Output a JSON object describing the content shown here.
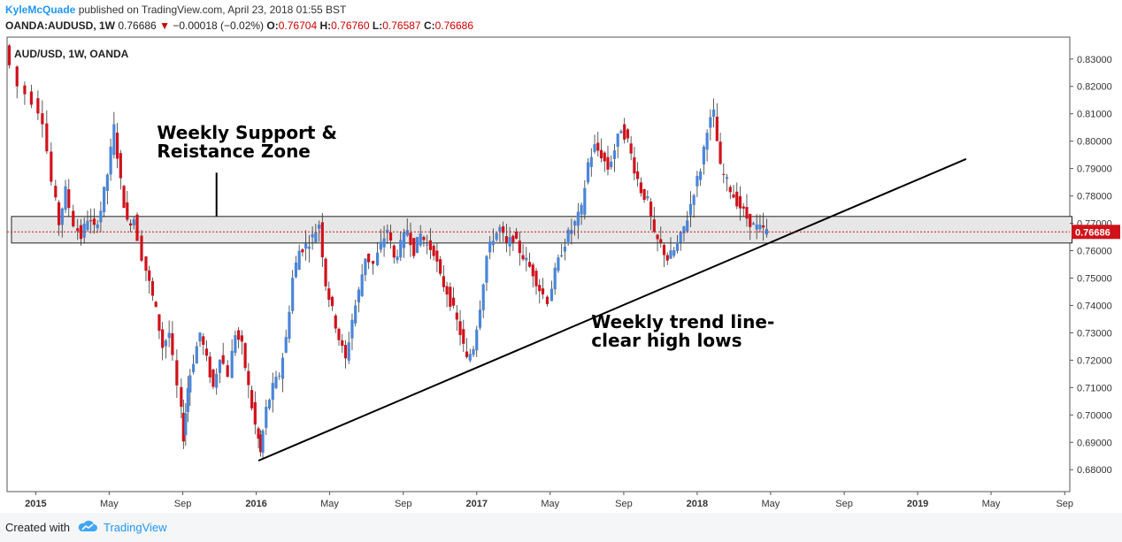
{
  "header": {
    "author": "KyleMcQuade",
    "published_text": "published on TradingView.com, April 23, 2018 01:55 BST",
    "symbol": "OANDA:AUDUSD, 1W",
    "last": "0.76686",
    "change_arrow": "▼",
    "change": "−0.00018 (−0.02%)",
    "open_label": "O:",
    "open": "0.76704",
    "high_label": "H:",
    "high": "0.76760",
    "low_label": "L:",
    "low": "0.76587",
    "close_label": "C:",
    "close": "0.76686"
  },
  "footer": {
    "created_with": "Created with",
    "brand": "TradingView"
  },
  "chart_data": {
    "type": "candlestick",
    "title": "AUD/USD, 1W, OANDA",
    "y_axis": {
      "min": 0.672,
      "max": 0.838,
      "ticks": [
        "0.83000",
        "0.82000",
        "0.81000",
        "0.80000",
        "0.79000",
        "0.78000",
        "0.77000",
        "0.76000",
        "0.75000",
        "0.74000",
        "0.73000",
        "0.72000",
        "0.71000",
        "0.70000",
        "0.69000",
        "0.68000"
      ],
      "tick_values": [
        0.83,
        0.82,
        0.81,
        0.8,
        0.79,
        0.78,
        0.77,
        0.76,
        0.75,
        0.74,
        0.73,
        0.72,
        0.71,
        0.7,
        0.69,
        0.68
      ]
    },
    "x_axis": {
      "ticks": [
        {
          "label": "2015",
          "bold": true,
          "t": 2015.0
        },
        {
          "label": "May",
          "bold": false,
          "t": 2015.333
        },
        {
          "label": "Sep",
          "bold": false,
          "t": 2015.667
        },
        {
          "label": "2016",
          "bold": true,
          "t": 2016.0
        },
        {
          "label": "May",
          "bold": false,
          "t": 2016.333
        },
        {
          "label": "Sep",
          "bold": false,
          "t": 2016.667
        },
        {
          "label": "2017",
          "bold": true,
          "t": 2017.0
        },
        {
          "label": "May",
          "bold": false,
          "t": 2017.333
        },
        {
          "label": "Sep",
          "bold": false,
          "t": 2017.667
        },
        {
          "label": "2018",
          "bold": true,
          "t": 2018.0
        },
        {
          "label": "May",
          "bold": false,
          "t": 2018.333
        },
        {
          "label": "Sep",
          "bold": false,
          "t": 2018.667
        },
        {
          "label": "2019",
          "bold": true,
          "t": 2019.0
        },
        {
          "label": "May",
          "bold": false,
          "t": 2019.333
        },
        {
          "label": "Sep",
          "bold": false,
          "t": 2019.667
        }
      ]
    },
    "current_price": 0.76686,
    "current_price_label": "0.76686",
    "support_resistance_zone": {
      "top": 0.7725,
      "bottom": 0.7628,
      "t_start": 2014.89,
      "t_end": 2019.7
    },
    "trend_line": {
      "t1": 2016.01,
      "p1": 0.6833,
      "t2": 2019.22,
      "p2": 0.7935
    },
    "annotations": [
      {
        "id": "zone",
        "lines": [
          "Weekly Support &",
          "Reistance Zone"
        ],
        "t": 2015.55,
        "p": 0.8008,
        "pointer_t": 2015.82,
        "pointer_from": 0.7885,
        "pointer_to": 0.7725
      },
      {
        "id": "trend",
        "lines": [
          "Weekly trend line-",
          "clear high lows"
        ],
        "t": 2017.52,
        "p": 0.7318
      }
    ],
    "path_points": [
      [
        2014.88,
        0.835
      ],
      [
        2014.95,
        0.82
      ],
      [
        2015.01,
        0.815
      ],
      [
        2015.05,
        0.808
      ],
      [
        2015.09,
        0.785
      ],
      [
        2015.12,
        0.77
      ],
      [
        2015.15,
        0.782
      ],
      [
        2015.19,
        0.77
      ],
      [
        2015.22,
        0.765
      ],
      [
        2015.25,
        0.772
      ],
      [
        2015.28,
        0.768
      ],
      [
        2015.31,
        0.775
      ],
      [
        2015.34,
        0.788
      ],
      [
        2015.37,
        0.805
      ],
      [
        2015.4,
        0.785
      ],
      [
        2015.43,
        0.77
      ],
      [
        2015.46,
        0.772
      ],
      [
        2015.5,
        0.758
      ],
      [
        2015.53,
        0.748
      ],
      [
        2015.56,
        0.738
      ],
      [
        2015.59,
        0.725
      ],
      [
        2015.62,
        0.73
      ],
      [
        2015.66,
        0.71
      ],
      [
        2015.68,
        0.692
      ],
      [
        2015.7,
        0.71
      ],
      [
        2015.73,
        0.72
      ],
      [
        2015.76,
        0.73
      ],
      [
        2015.79,
        0.72
      ],
      [
        2015.82,
        0.71
      ],
      [
        2015.85,
        0.722
      ],
      [
        2015.89,
        0.715
      ],
      [
        2015.92,
        0.73
      ],
      [
        2015.95,
        0.725
      ],
      [
        2015.98,
        0.71
      ],
      [
        2016.01,
        0.696
      ],
      [
        2016.03,
        0.686
      ],
      [
        2016.06,
        0.702
      ],
      [
        2016.09,
        0.71
      ],
      [
        2016.12,
        0.715
      ],
      [
        2016.15,
        0.728
      ],
      [
        2016.18,
        0.75
      ],
      [
        2016.21,
        0.76
      ],
      [
        2016.24,
        0.762
      ],
      [
        2016.27,
        0.765
      ],
      [
        2016.3,
        0.77
      ],
      [
        2016.33,
        0.748
      ],
      [
        2016.36,
        0.738
      ],
      [
        2016.39,
        0.728
      ],
      [
        2016.42,
        0.72
      ],
      [
        2016.45,
        0.735
      ],
      [
        2016.48,
        0.745
      ],
      [
        2016.51,
        0.758
      ],
      [
        2016.55,
        0.755
      ],
      [
        2016.58,
        0.762
      ],
      [
        2016.61,
        0.768
      ],
      [
        2016.64,
        0.757
      ],
      [
        2016.67,
        0.762
      ],
      [
        2016.7,
        0.768
      ],
      [
        2016.73,
        0.76
      ],
      [
        2016.76,
        0.766
      ],
      [
        2016.79,
        0.762
      ],
      [
        2016.82,
        0.76
      ],
      [
        2016.85,
        0.75
      ],
      [
        2016.88,
        0.745
      ],
      [
        2016.91,
        0.738
      ],
      [
        2016.94,
        0.73
      ],
      [
        2016.97,
        0.72
      ],
      [
        2017.0,
        0.725
      ],
      [
        2017.03,
        0.74
      ],
      [
        2017.06,
        0.758
      ],
      [
        2017.09,
        0.765
      ],
      [
        2017.12,
        0.768
      ],
      [
        2017.15,
        0.762
      ],
      [
        2017.18,
        0.765
      ],
      [
        2017.21,
        0.76
      ],
      [
        2017.24,
        0.756
      ],
      [
        2017.27,
        0.752
      ],
      [
        2017.3,
        0.746
      ],
      [
        2017.34,
        0.742
      ],
      [
        2017.37,
        0.752
      ],
      [
        2017.4,
        0.76
      ],
      [
        2017.43,
        0.766
      ],
      [
        2017.46,
        0.77
      ],
      [
        2017.49,
        0.775
      ],
      [
        2017.52,
        0.792
      ],
      [
        2017.55,
        0.798
      ],
      [
        2017.58,
        0.795
      ],
      [
        2017.61,
        0.79
      ],
      [
        2017.64,
        0.797
      ],
      [
        2017.67,
        0.805
      ],
      [
        2017.7,
        0.8
      ],
      [
        2017.73,
        0.79
      ],
      [
        2017.76,
        0.782
      ],
      [
        2017.79,
        0.778
      ],
      [
        2017.82,
        0.765
      ],
      [
        2017.85,
        0.762
      ],
      [
        2017.88,
        0.757
      ],
      [
        2017.91,
        0.76
      ],
      [
        2017.94,
        0.765
      ],
      [
        2017.97,
        0.772
      ],
      [
        2018.0,
        0.782
      ],
      [
        2018.03,
        0.79
      ],
      [
        2018.06,
        0.805
      ],
      [
        2018.09,
        0.81
      ],
      [
        2018.12,
        0.79
      ],
      [
        2018.15,
        0.785
      ],
      [
        2018.18,
        0.78
      ],
      [
        2018.21,
        0.776
      ],
      [
        2018.24,
        0.772
      ],
      [
        2018.27,
        0.769
      ],
      [
        2018.3,
        0.768
      ],
      [
        2018.33,
        0.767
      ]
    ]
  }
}
